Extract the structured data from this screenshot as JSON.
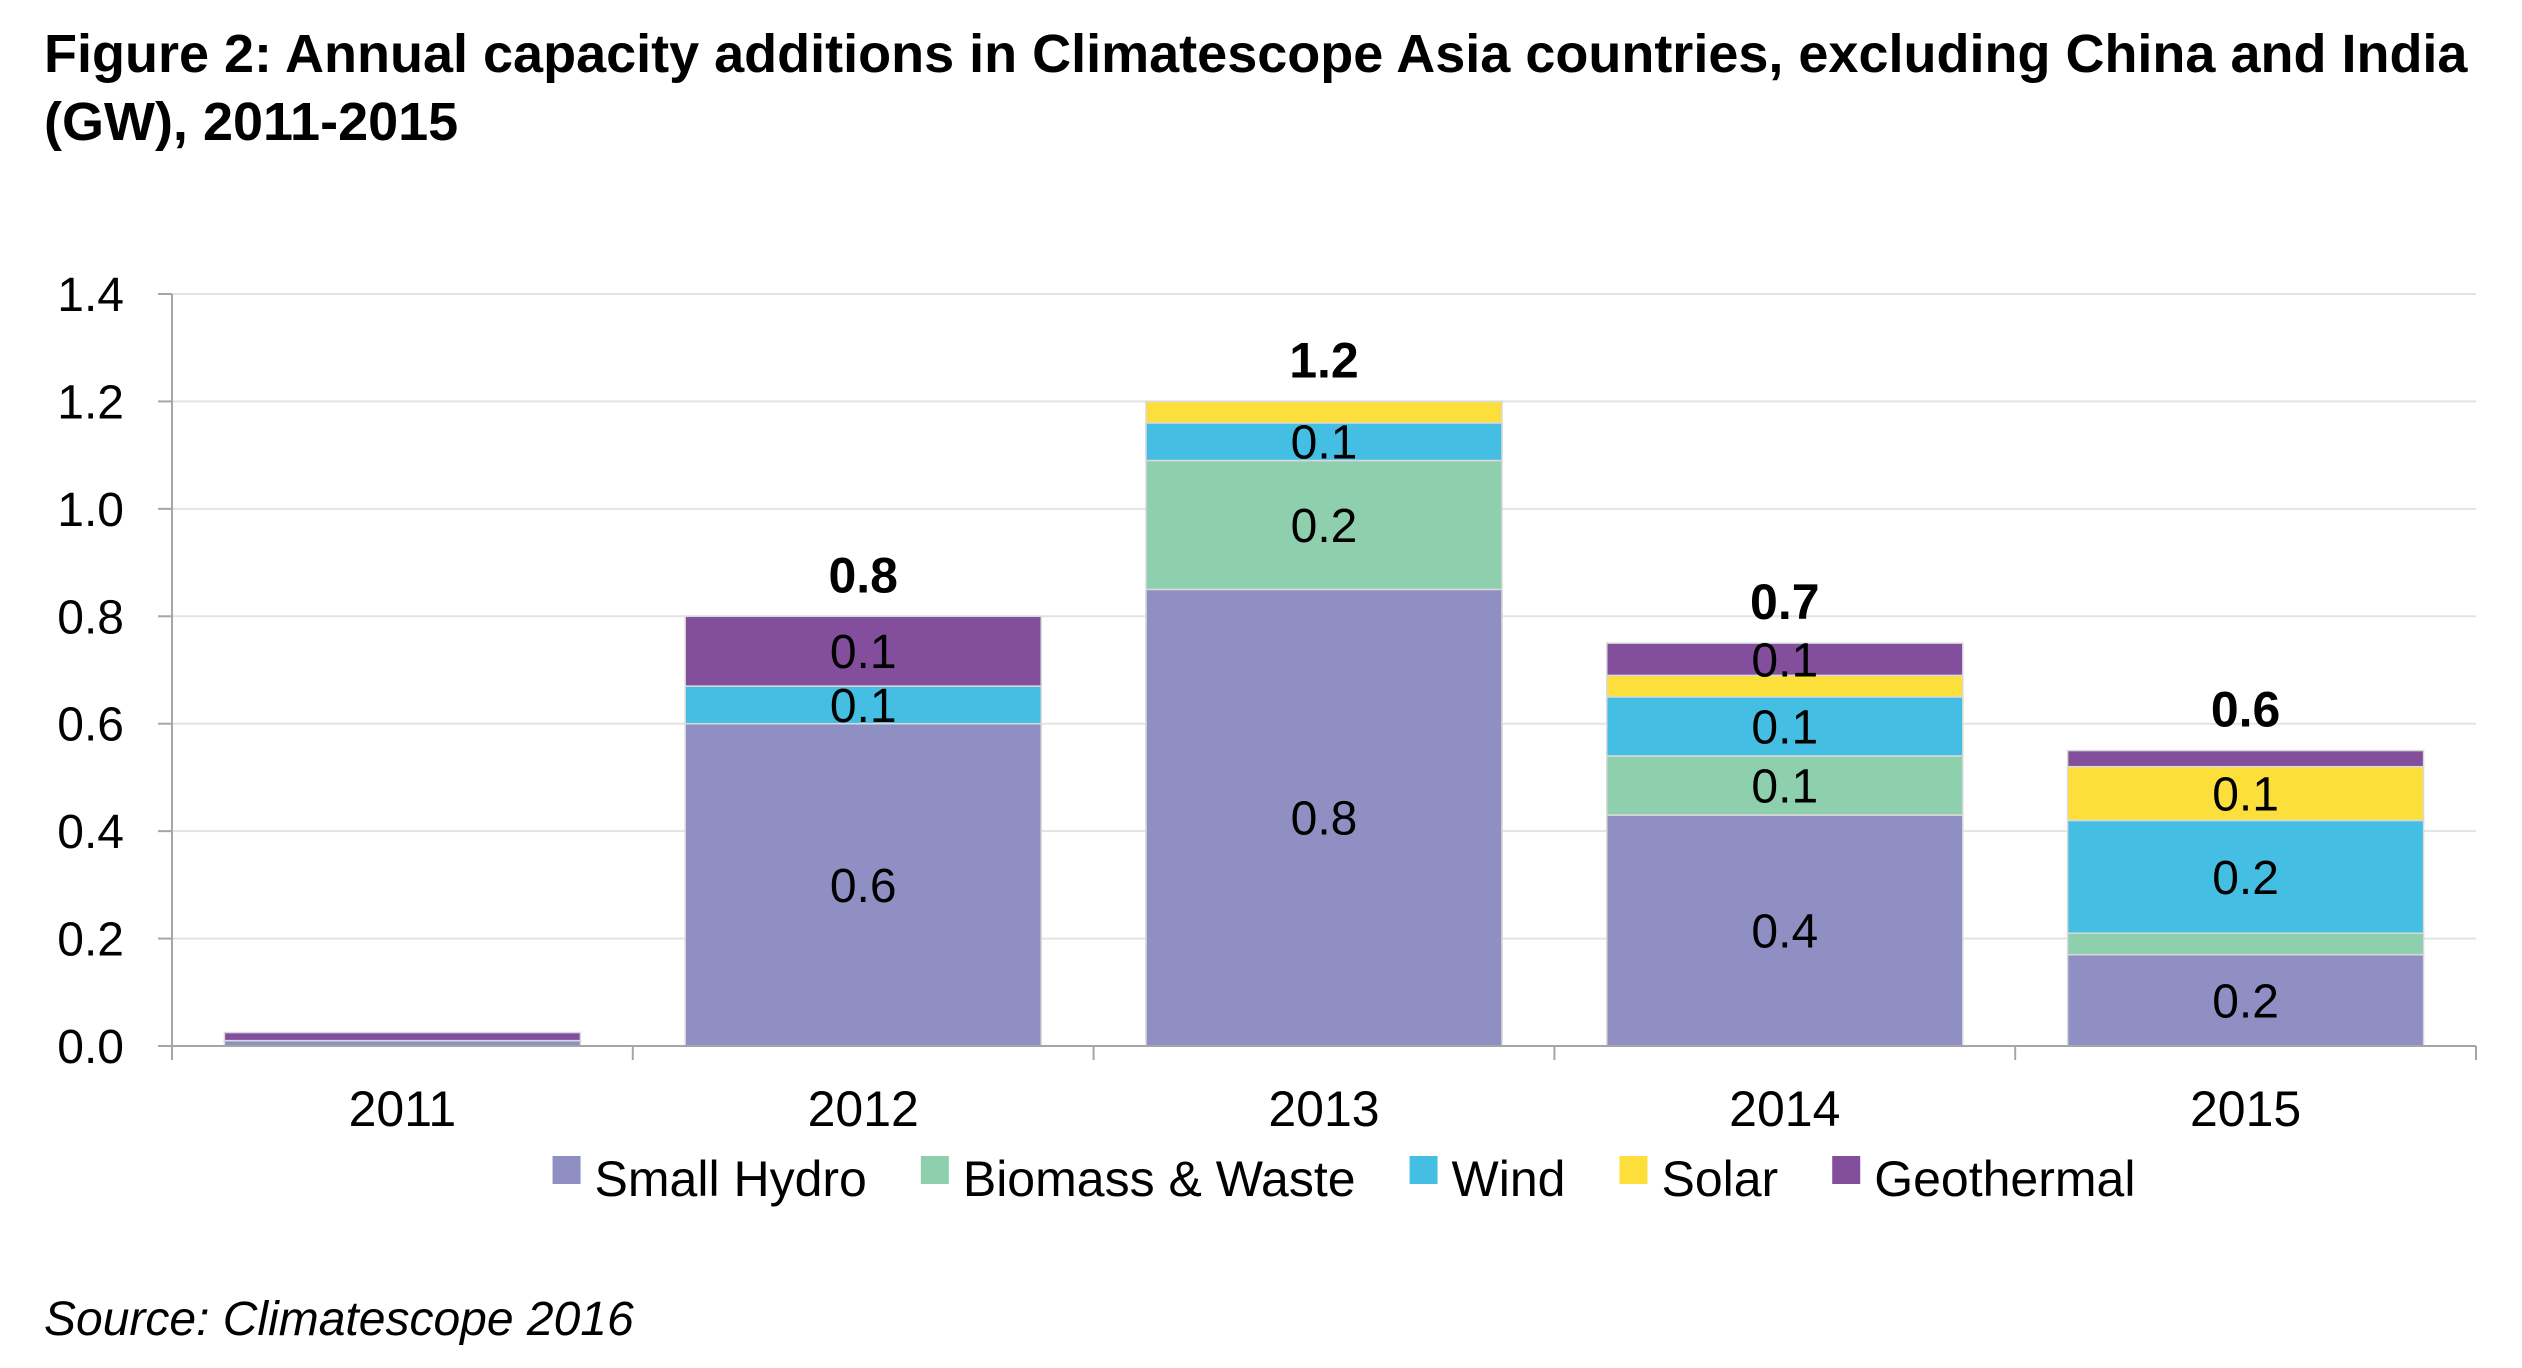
{
  "figure": {
    "title": "Figure 2: Annual capacity additions in Climatescope Asia countries, excluding China and India (GW), 2011-2015",
    "source": "Source: Climatescope 2016"
  },
  "colors": {
    "small_hydro": "#8F8FC4",
    "biomass_waste": "#8ECFAE",
    "wind": "#45BEE4",
    "solar": "#FCDF3A",
    "geothermal": "#834F9C",
    "axis": "#A6A6A6",
    "grid": "#E3E3E3"
  },
  "chart_data": {
    "type": "bar",
    "stacked": true,
    "title": "",
    "xlabel": "",
    "ylabel": "",
    "ylim": [
      0,
      1.4
    ],
    "yticks": [
      "0.0",
      "0.2",
      "0.4",
      "0.6",
      "0.8",
      "1.0",
      "1.2",
      "1.4"
    ],
    "grid": true,
    "legend_position": "bottom",
    "categories": [
      "2011",
      "2012",
      "2013",
      "2014",
      "2015"
    ],
    "series": [
      {
        "name": "Small Hydro",
        "color_key": "small_hydro",
        "values": [
          0.01,
          0.6,
          0.85,
          0.43,
          0.17
        ],
        "labels": [
          "",
          "0.6",
          "0.8",
          "0.4",
          "0.2"
        ]
      },
      {
        "name": "Biomass & Waste",
        "color_key": "biomass_waste",
        "values": [
          0.0,
          0.0,
          0.24,
          0.11,
          0.04
        ],
        "labels": [
          "",
          "",
          "0.2",
          "0.1",
          ""
        ]
      },
      {
        "name": "Wind",
        "color_key": "wind",
        "values": [
          0.0,
          0.07,
          0.07,
          0.11,
          0.21
        ],
        "labels": [
          "",
          "0.1",
          "0.1",
          "0.1",
          "0.2"
        ]
      },
      {
        "name": "Solar",
        "color_key": "solar",
        "values": [
          0.0,
          0.0,
          0.04,
          0.04,
          0.1
        ],
        "labels": [
          "",
          "",
          "",
          "",
          "0.1"
        ]
      },
      {
        "name": "Geothermal",
        "color_key": "geothermal",
        "values": [
          0.015,
          0.13,
          0.0,
          0.06,
          0.03
        ],
        "labels": [
          "",
          "0.1",
          "",
          "0.1",
          ""
        ]
      }
    ],
    "totals": [
      0.02,
      0.8,
      1.2,
      0.75,
      0.55
    ],
    "total_labels": [
      "",
      "0.8",
      "1.2",
      "0.7",
      "0.6"
    ]
  }
}
